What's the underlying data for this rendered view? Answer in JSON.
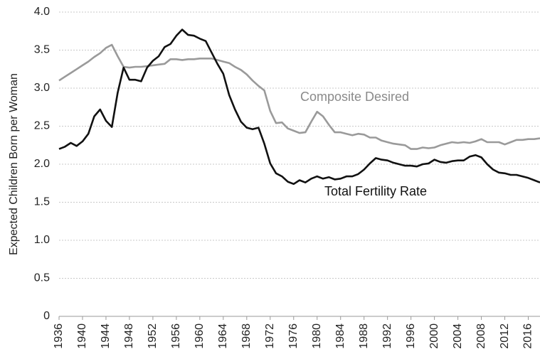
{
  "chart_data": {
    "type": "line",
    "y_label": "Expected Children Born per Woman",
    "x": [
      1936,
      1937,
      1938,
      1939,
      1940,
      1941,
      1942,
      1943,
      1944,
      1945,
      1946,
      1947,
      1948,
      1949,
      1950,
      1951,
      1952,
      1953,
      1954,
      1955,
      1956,
      1957,
      1958,
      1959,
      1960,
      1961,
      1962,
      1963,
      1964,
      1965,
      1966,
      1967,
      1968,
      1969,
      1970,
      1971,
      1972,
      1973,
      1974,
      1975,
      1976,
      1977,
      1978,
      1979,
      1980,
      1981,
      1982,
      1983,
      1984,
      1985,
      1986,
      1987,
      1988,
      1989,
      1990,
      1991,
      1992,
      1993,
      1994,
      1995,
      1996,
      1997,
      1998,
      1999,
      2000,
      2001,
      2002,
      2003,
      2004,
      2005,
      2006,
      2007,
      2008,
      2009,
      2010,
      2011,
      2012,
      2013,
      2014,
      2015,
      2016,
      2017,
      2018
    ],
    "series": [
      {
        "name": "Composite Desired",
        "color": "#9a9a9a",
        "values": [
          3.1,
          3.15,
          3.2,
          3.25,
          3.3,
          3.35,
          3.41,
          3.46,
          3.53,
          3.57,
          3.42,
          3.28,
          3.27,
          3.28,
          3.28,
          3.29,
          3.3,
          3.31,
          3.32,
          3.38,
          3.38,
          3.37,
          3.38,
          3.38,
          3.39,
          3.39,
          3.39,
          3.37,
          3.35,
          3.33,
          3.28,
          3.24,
          3.18,
          3.1,
          3.03,
          2.97,
          2.7,
          2.54,
          2.55,
          2.47,
          2.44,
          2.41,
          2.42,
          2.56,
          2.69,
          2.63,
          2.52,
          2.42,
          2.42,
          2.4,
          2.38,
          2.4,
          2.39,
          2.35,
          2.35,
          2.31,
          2.29,
          2.27,
          2.26,
          2.25,
          2.2,
          2.2,
          2.22,
          2.21,
          2.22,
          2.25,
          2.27,
          2.29,
          2.28,
          2.29,
          2.28,
          2.3,
          2.33,
          2.29,
          2.29,
          2.29,
          2.26,
          2.29,
          2.32,
          2.32,
          2.33,
          2.33,
          2.34
        ]
      },
      {
        "name": "Total Fertility Rate",
        "color": "#111111",
        "values": [
          2.2,
          2.23,
          2.28,
          2.24,
          2.3,
          2.4,
          2.63,
          2.72,
          2.57,
          2.49,
          2.94,
          3.27,
          3.11,
          3.11,
          3.09,
          3.27,
          3.36,
          3.42,
          3.54,
          3.58,
          3.69,
          3.77,
          3.7,
          3.69,
          3.65,
          3.62,
          3.47,
          3.32,
          3.19,
          2.91,
          2.72,
          2.56,
          2.48,
          2.46,
          2.48,
          2.27,
          2.01,
          1.88,
          1.84,
          1.77,
          1.74,
          1.79,
          1.76,
          1.81,
          1.84,
          1.81,
          1.83,
          1.8,
          1.81,
          1.84,
          1.84,
          1.87,
          1.93,
          2.01,
          2.08,
          2.06,
          2.05,
          2.02,
          2.0,
          1.98,
          1.98,
          1.97,
          2.0,
          2.01,
          2.06,
          2.03,
          2.02,
          2.04,
          2.05,
          2.05,
          2.1,
          2.12,
          2.09,
          2.0,
          1.93,
          1.89,
          1.88,
          1.86,
          1.86,
          1.84,
          1.82,
          1.79,
          1.76
        ]
      }
    ],
    "xlim": [
      1936,
      2018
    ],
    "xticks": [
      1936,
      1940,
      1944,
      1948,
      1952,
      1956,
      1960,
      1964,
      1968,
      1972,
      1976,
      1980,
      1984,
      1988,
      1992,
      1996,
      2000,
      2004,
      2008,
      2012,
      2016
    ],
    "ylim": [
      0,
      4
    ],
    "yticks": [
      0,
      {
        "value": 0.5,
        "label": "0.5"
      },
      {
        "value": 1,
        "label": "1.0"
      },
      1.5,
      {
        "value": 2,
        "label": "2.0"
      },
      2.5,
      {
        "value": 3,
        "label": "3.0"
      },
      3.5,
      {
        "value": 4,
        "label": "4.0"
      }
    ],
    "grid": true
  }
}
